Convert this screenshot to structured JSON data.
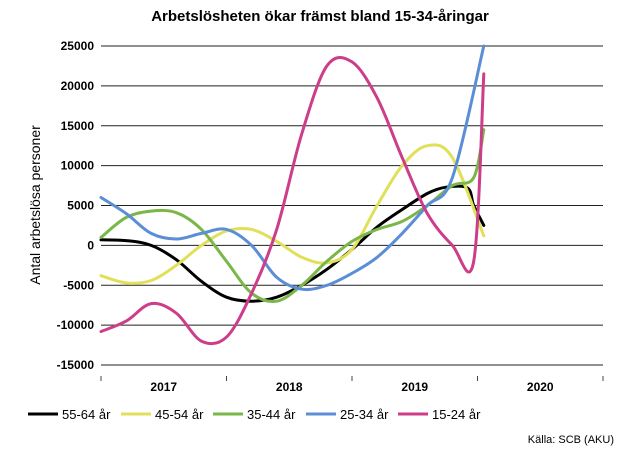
{
  "chart_data": {
    "type": "line",
    "title": "Arbetslösheten ökar främst bland 15-34-åringar",
    "ylabel": "Antal arbetslösa personer",
    "xlabel": "",
    "ylim": [
      -15000,
      25000
    ],
    "yticks": [
      25000,
      20000,
      15000,
      10000,
      5000,
      0,
      -5000,
      -10000,
      -15000
    ],
    "ytick_labels": [
      "25000",
      "20000",
      "15000",
      "10000",
      "5000",
      "0",
      "-5000",
      "-10000",
      "-15000"
    ],
    "x_categories": [
      "2017",
      "2018",
      "2019",
      "2020"
    ],
    "x_note": "x values are years (2017.0 = start of 2017)",
    "grid": true,
    "legend_position": "bottom",
    "source": "Källa: SCB (AKU)",
    "series": [
      {
        "name": "55-64 år",
        "color": "#000000",
        "x": [
          2017.0,
          2017.2,
          2017.4,
          2017.6,
          2017.8,
          2018.0,
          2018.2,
          2018.4,
          2018.6,
          2018.8,
          2019.0,
          2019.2,
          2019.4,
          2019.6,
          2019.75,
          2019.92,
          2019.97,
          2020.05
        ],
        "values": [
          700,
          600,
          0,
          -1800,
          -4500,
          -6500,
          -7000,
          -6500,
          -5000,
          -3000,
          -500,
          2300,
          4500,
          6500,
          7300,
          7200,
          5000,
          2500
        ]
      },
      {
        "name": "45-54 år",
        "color": "#e0e05a",
        "x": [
          2017.0,
          2017.2,
          2017.4,
          2017.6,
          2017.8,
          2018.0,
          2018.2,
          2018.4,
          2018.6,
          2018.8,
          2019.0,
          2019.2,
          2019.4,
          2019.6,
          2019.8,
          2020.05
        ],
        "values": [
          -3800,
          -4700,
          -4400,
          -2500,
          0,
          1800,
          2000,
          500,
          -1500,
          -2200,
          -500,
          5000,
          10000,
          12500,
          11000,
          1200
        ]
      },
      {
        "name": "35-44 år",
        "color": "#7ab648",
        "x": [
          2017.0,
          2017.2,
          2017.4,
          2017.6,
          2017.8,
          2018.0,
          2018.2,
          2018.4,
          2018.6,
          2018.8,
          2019.0,
          2019.2,
          2019.4,
          2019.6,
          2019.8,
          2019.97,
          2020.05
        ],
        "values": [
          1000,
          3500,
          4300,
          4100,
          2000,
          -2000,
          -6000,
          -7000,
          -5000,
          -2000,
          500,
          2000,
          3000,
          5000,
          7500,
          8500,
          14500
        ]
      },
      {
        "name": "25-34 år",
        "color": "#5b8ed6",
        "x": [
          2017.0,
          2017.2,
          2017.4,
          2017.6,
          2017.8,
          2018.0,
          2018.2,
          2018.4,
          2018.6,
          2018.8,
          2019.0,
          2019.2,
          2019.4,
          2019.6,
          2019.8,
          2020.05
        ],
        "values": [
          6000,
          4000,
          1500,
          800,
          1500,
          2000,
          0,
          -4000,
          -5500,
          -5000,
          -3500,
          -1500,
          1500,
          5000,
          8500,
          25000
        ]
      },
      {
        "name": "15-24 år",
        "color": "#cc3d8a",
        "x": [
          2017.0,
          2017.2,
          2017.4,
          2017.6,
          2017.8,
          2018.0,
          2018.2,
          2018.4,
          2018.6,
          2018.8,
          2019.0,
          2019.2,
          2019.4,
          2019.6,
          2019.8,
          2019.97,
          2020.05
        ],
        "values": [
          -10800,
          -9500,
          -7300,
          -8500,
          -12000,
          -11500,
          -6000,
          2000,
          14000,
          22500,
          23000,
          18500,
          11000,
          4000,
          0,
          -2000,
          21500
        ]
      }
    ]
  }
}
